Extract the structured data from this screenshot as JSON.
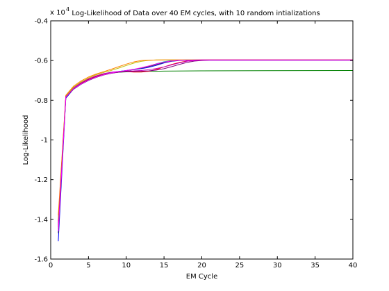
{
  "chart_data": {
    "type": "line",
    "title": "Log-Likelihood of Data over 40 EM cycles, with 10 random intializations",
    "xlabel": "EM Cycle",
    "ylabel": "Log-Likelihood",
    "y_multiplier": "x 10",
    "y_exponent": "4",
    "xlim": [
      0,
      40
    ],
    "ylim": [
      -1.6,
      -0.4
    ],
    "y_scale_factor": 10000,
    "x_ticks": [
      0,
      5,
      10,
      15,
      20,
      25,
      30,
      35,
      40
    ],
    "y_ticks": [
      -1.6,
      -1.4,
      -1.2,
      -1,
      -0.8,
      -0.6,
      -0.4
    ],
    "x_tick_labels": [
      "0",
      "5",
      "10",
      "15",
      "20",
      "25",
      "30",
      "35",
      "40"
    ],
    "y_tick_labels": [
      "-1.6",
      "-1.4",
      "-1.2",
      "-1",
      "-0.8",
      "-0.6",
      "-0.4"
    ],
    "grid": false,
    "legend": "none",
    "series": [
      {
        "color": "#0000ff",
        "x": [
          1,
          2,
          3,
          4,
          5,
          6,
          7,
          8,
          9,
          10,
          11,
          12,
          13,
          14,
          15,
          16,
          17,
          18,
          19,
          20,
          40
        ],
        "y": [
          -1.51,
          -0.79,
          -0.745,
          -0.72,
          -0.7,
          -0.685,
          -0.672,
          -0.662,
          -0.655,
          -0.65,
          -0.646,
          -0.641,
          -0.634,
          -0.624,
          -0.612,
          -0.604,
          -0.6,
          -0.599,
          -0.598,
          -0.598,
          -0.598
        ]
      },
      {
        "color": "#008000",
        "x": [
          1,
          2,
          3,
          4,
          5,
          6,
          7,
          8,
          9,
          10,
          11,
          12,
          13,
          14,
          15,
          20,
          40
        ],
        "y": [
          -1.42,
          -0.785,
          -0.74,
          -0.715,
          -0.695,
          -0.68,
          -0.67,
          -0.663,
          -0.659,
          -0.657,
          -0.656,
          -0.655,
          -0.654,
          -0.654,
          -0.653,
          -0.652,
          -0.65
        ]
      },
      {
        "color": "#ff0000",
        "x": [
          1,
          2,
          3,
          4,
          5,
          6,
          7,
          8,
          9,
          10,
          11,
          12,
          13,
          14,
          15,
          16,
          17,
          18,
          19,
          20,
          21,
          40
        ],
        "y": [
          -1.41,
          -0.78,
          -0.74,
          -0.715,
          -0.695,
          -0.68,
          -0.668,
          -0.66,
          -0.656,
          -0.656,
          -0.658,
          -0.658,
          -0.654,
          -0.645,
          -0.632,
          -0.62,
          -0.61,
          -0.603,
          -0.6,
          -0.598,
          -0.597,
          -0.597
        ]
      },
      {
        "color": "#00bfbf",
        "x": [
          1,
          2,
          3,
          4,
          5,
          6,
          7,
          8,
          9,
          10,
          11,
          12,
          13,
          14,
          15,
          16,
          17,
          18,
          20,
          40
        ],
        "y": [
          -1.45,
          -0.782,
          -0.742,
          -0.718,
          -0.698,
          -0.683,
          -0.671,
          -0.662,
          -0.655,
          -0.65,
          -0.645,
          -0.638,
          -0.628,
          -0.616,
          -0.606,
          -0.6,
          -0.598,
          -0.597,
          -0.597,
          -0.597
        ]
      },
      {
        "color": "#bf00bf",
        "x": [
          1,
          2,
          3,
          4,
          5,
          6,
          7,
          8,
          9,
          10,
          11,
          12,
          13,
          14,
          15,
          16,
          17,
          18,
          19,
          20,
          40
        ],
        "y": [
          -1.43,
          -0.78,
          -0.738,
          -0.712,
          -0.692,
          -0.677,
          -0.666,
          -0.659,
          -0.655,
          -0.653,
          -0.652,
          -0.65,
          -0.646,
          -0.64,
          -0.632,
          -0.622,
          -0.612,
          -0.604,
          -0.6,
          -0.598,
          -0.598
        ]
      },
      {
        "color": "#bfbf00",
        "x": [
          1,
          2,
          3,
          4,
          5,
          6,
          7,
          8,
          9,
          10,
          11,
          12,
          13,
          14,
          16,
          20,
          40
        ],
        "y": [
          -1.4,
          -0.78,
          -0.735,
          -0.708,
          -0.688,
          -0.672,
          -0.66,
          -0.65,
          -0.638,
          -0.625,
          -0.613,
          -0.604,
          -0.599,
          -0.597,
          -0.597,
          -0.597,
          -0.597
        ]
      },
      {
        "color": "#404040",
        "x": [
          1,
          2,
          3,
          4,
          5,
          6,
          7,
          8,
          9,
          10,
          11,
          12,
          13,
          14,
          15,
          16,
          17,
          18,
          20,
          40
        ],
        "y": [
          -1.47,
          -0.786,
          -0.745,
          -0.72,
          -0.7,
          -0.685,
          -0.673,
          -0.664,
          -0.657,
          -0.651,
          -0.645,
          -0.638,
          -0.63,
          -0.62,
          -0.61,
          -0.603,
          -0.599,
          -0.598,
          -0.597,
          -0.597
        ]
      },
      {
        "color": "#ff8000",
        "x": [
          1,
          2,
          3,
          4,
          5,
          6,
          7,
          8,
          9,
          10,
          11,
          12,
          13,
          15,
          20,
          40
        ],
        "y": [
          -1.38,
          -0.775,
          -0.73,
          -0.703,
          -0.683,
          -0.668,
          -0.656,
          -0.644,
          -0.631,
          -0.618,
          -0.607,
          -0.6,
          -0.598,
          -0.597,
          -0.597,
          -0.597
        ]
      },
      {
        "color": "#800080",
        "x": [
          1,
          2,
          3,
          4,
          5,
          6,
          7,
          8,
          9,
          10,
          11,
          12,
          13,
          14,
          15,
          16,
          17,
          18,
          19,
          20,
          21,
          40
        ],
        "y": [
          -1.44,
          -0.783,
          -0.742,
          -0.718,
          -0.698,
          -0.683,
          -0.672,
          -0.664,
          -0.659,
          -0.656,
          -0.655,
          -0.654,
          -0.652,
          -0.648,
          -0.641,
          -0.631,
          -0.62,
          -0.61,
          -0.603,
          -0.6,
          -0.598,
          -0.598
        ]
      },
      {
        "color": "#ff00ff",
        "x": [
          1,
          2,
          3,
          4,
          5,
          6,
          7,
          8,
          9,
          10,
          11,
          12,
          13,
          14,
          15,
          16,
          17,
          18,
          20,
          40
        ],
        "y": [
          -1.46,
          -0.784,
          -0.743,
          -0.719,
          -0.699,
          -0.684,
          -0.672,
          -0.663,
          -0.656,
          -0.65,
          -0.644,
          -0.636,
          -0.627,
          -0.617,
          -0.608,
          -0.602,
          -0.599,
          -0.598,
          -0.597,
          -0.597
        ]
      }
    ]
  }
}
